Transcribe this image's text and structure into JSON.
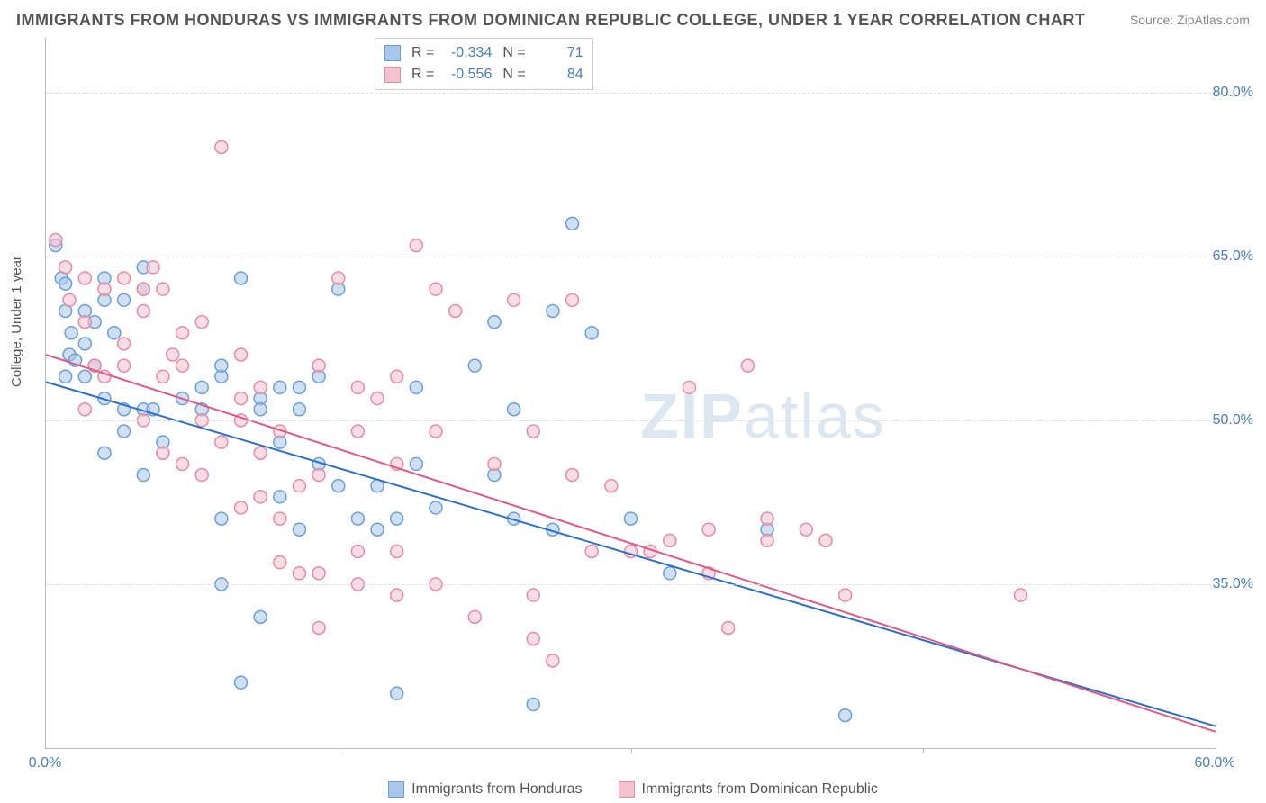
{
  "title": "IMMIGRANTS FROM HONDURAS VS IMMIGRANTS FROM DOMINICAN REPUBLIC COLLEGE, UNDER 1 YEAR CORRELATION CHART",
  "source_label": "Source:",
  "source_name": "ZipAtlas.com",
  "y_axis_label": "College, Under 1 year",
  "watermark_a": "ZIP",
  "watermark_b": "atlas",
  "chart": {
    "type": "scatter",
    "xlim": [
      0,
      60
    ],
    "ylim": [
      20,
      85
    ],
    "x_ticks": [
      0,
      15,
      30,
      45,
      60
    ],
    "x_tick_labels": [
      "0.0%",
      "",
      "",
      "",
      "60.0%"
    ],
    "y_ticks": [
      35,
      50,
      65,
      80
    ],
    "y_tick_labels": [
      "35.0%",
      "50.0%",
      "65.0%",
      "80.0%"
    ],
    "grid_color": "#dddddd",
    "background_color": "#ffffff",
    "axis_color": "#bbbbbb",
    "tick_label_color": "#4a7ebb",
    "axis_label_color": "#555555",
    "point_radius": 7,
    "point_stroke_width": 1.5,
    "regression_line_width": 2,
    "series": [
      {
        "name": "Immigrants from Honduras",
        "fill": "#a9c7ea",
        "stroke": "#6b9fd8",
        "fill_opacity": 0.55,
        "R": "-0.334",
        "N": "71",
        "regression": {
          "x1": 0,
          "y1": 53.5,
          "x2": 60,
          "y2": 22,
          "color": "#2e6fc7"
        },
        "points": [
          [
            0.5,
            66
          ],
          [
            0.8,
            63
          ],
          [
            1,
            62.5
          ],
          [
            1,
            60
          ],
          [
            1.2,
            56
          ],
          [
            1.3,
            58
          ],
          [
            1,
            54
          ],
          [
            1.5,
            55.5
          ],
          [
            2,
            60
          ],
          [
            2,
            57
          ],
          [
            2,
            54
          ],
          [
            2.5,
            55
          ],
          [
            2.5,
            59
          ],
          [
            3,
            61
          ],
          [
            3,
            63
          ],
          [
            3.5,
            58
          ],
          [
            4,
            61
          ],
          [
            5,
            62
          ],
          [
            5,
            64
          ],
          [
            3,
            52
          ],
          [
            4,
            51
          ],
          [
            5,
            51
          ],
          [
            5.5,
            51
          ],
          [
            4,
            49
          ],
          [
            6,
            48
          ],
          [
            3,
            47
          ],
          [
            5,
            45
          ],
          [
            7,
            52
          ],
          [
            8,
            53
          ],
          [
            8,
            51
          ],
          [
            9,
            54
          ],
          [
            9,
            55
          ],
          [
            10,
            63
          ],
          [
            11,
            52
          ],
          [
            11,
            51
          ],
          [
            12,
            53
          ],
          [
            12,
            48
          ],
          [
            12,
            43
          ],
          [
            13,
            53
          ],
          [
            13,
            51
          ],
          [
            14,
            54
          ],
          [
            14,
            46
          ],
          [
            9,
            41
          ],
          [
            9,
            35
          ],
          [
            10,
            26
          ],
          [
            11,
            32
          ],
          [
            13,
            40
          ],
          [
            15,
            44
          ],
          [
            16,
            41
          ],
          [
            17,
            40
          ],
          [
            17,
            44
          ],
          [
            18,
            41
          ],
          [
            18,
            25
          ],
          [
            19,
            53
          ],
          [
            22,
            55
          ],
          [
            23,
            59
          ],
          [
            26,
            60
          ],
          [
            28,
            58
          ],
          [
            24,
            51
          ],
          [
            19,
            46
          ],
          [
            20,
            42
          ],
          [
            23,
            45
          ],
          [
            24,
            41
          ],
          [
            25,
            24
          ],
          [
            30,
            41
          ],
          [
            27,
            68
          ],
          [
            26,
            40
          ],
          [
            32,
            36
          ],
          [
            37,
            40
          ],
          [
            41,
            23
          ],
          [
            15,
            62
          ]
        ]
      },
      {
        "name": "Immigrants from Dominican Republic",
        "fill": "#f4c1cf",
        "stroke": "#e48ca5",
        "fill_opacity": 0.55,
        "R": "-0.556",
        "N": "84",
        "regression": {
          "x1": 0,
          "y1": 56,
          "x2": 60,
          "y2": 21.5,
          "color": "#e05a86"
        },
        "points": [
          [
            0.5,
            66.5
          ],
          [
            1,
            64
          ],
          [
            1.2,
            61
          ],
          [
            2,
            63
          ],
          [
            2,
            59
          ],
          [
            2.5,
            55
          ],
          [
            3,
            62
          ],
          [
            4,
            63
          ],
          [
            5,
            62
          ],
          [
            5,
            60
          ],
          [
            5.5,
            64
          ],
          [
            6,
            62
          ],
          [
            6,
            54
          ],
          [
            6.5,
            56
          ],
          [
            7,
            55
          ],
          [
            7,
            58
          ],
          [
            8,
            59
          ],
          [
            8,
            45
          ],
          [
            9,
            75
          ],
          [
            10,
            56
          ],
          [
            10,
            52
          ],
          [
            10,
            50
          ],
          [
            11,
            53
          ],
          [
            11,
            47
          ],
          [
            11,
            43
          ],
          [
            12,
            49
          ],
          [
            12,
            37
          ],
          [
            13,
            44
          ],
          [
            14,
            55
          ],
          [
            14,
            45
          ],
          [
            14,
            36
          ],
          [
            14,
            31
          ],
          [
            15,
            63
          ],
          [
            16,
            53
          ],
          [
            16,
            49
          ],
          [
            16,
            38
          ],
          [
            16,
            35
          ],
          [
            17,
            52
          ],
          [
            18,
            54
          ],
          [
            18,
            46
          ],
          [
            18,
            38
          ],
          [
            18,
            34
          ],
          [
            19,
            66
          ],
          [
            20,
            62
          ],
          [
            20,
            49
          ],
          [
            20,
            35
          ],
          [
            21,
            60
          ],
          [
            22,
            32
          ],
          [
            23,
            46
          ],
          [
            24,
            61
          ],
          [
            25,
            49
          ],
          [
            25,
            34
          ],
          [
            25,
            30
          ],
          [
            26,
            28
          ],
          [
            27,
            45
          ],
          [
            27,
            61
          ],
          [
            28,
            38
          ],
          [
            29,
            44
          ],
          [
            30,
            38
          ],
          [
            31,
            38
          ],
          [
            32,
            39
          ],
          [
            33,
            53
          ],
          [
            34,
            40
          ],
          [
            34,
            36
          ],
          [
            35,
            31
          ],
          [
            36,
            55
          ],
          [
            37,
            39
          ],
          [
            37,
            41
          ],
          [
            39,
            40
          ],
          [
            40,
            39
          ],
          [
            41,
            34
          ],
          [
            50,
            34
          ],
          [
            3,
            54
          ],
          [
            4,
            55
          ],
          [
            4,
            57
          ],
          [
            5,
            50
          ],
          [
            6,
            47
          ],
          [
            7,
            46
          ],
          [
            8,
            50
          ],
          [
            9,
            48
          ],
          [
            10,
            42
          ],
          [
            12,
            41
          ],
          [
            13,
            36
          ],
          [
            2,
            51
          ]
        ]
      }
    ]
  },
  "legend_top": {
    "r_label": "R =",
    "n_label": "N ="
  },
  "legend_bottom": [
    "Immigrants from Honduras",
    "Immigrants from Dominican Republic"
  ]
}
